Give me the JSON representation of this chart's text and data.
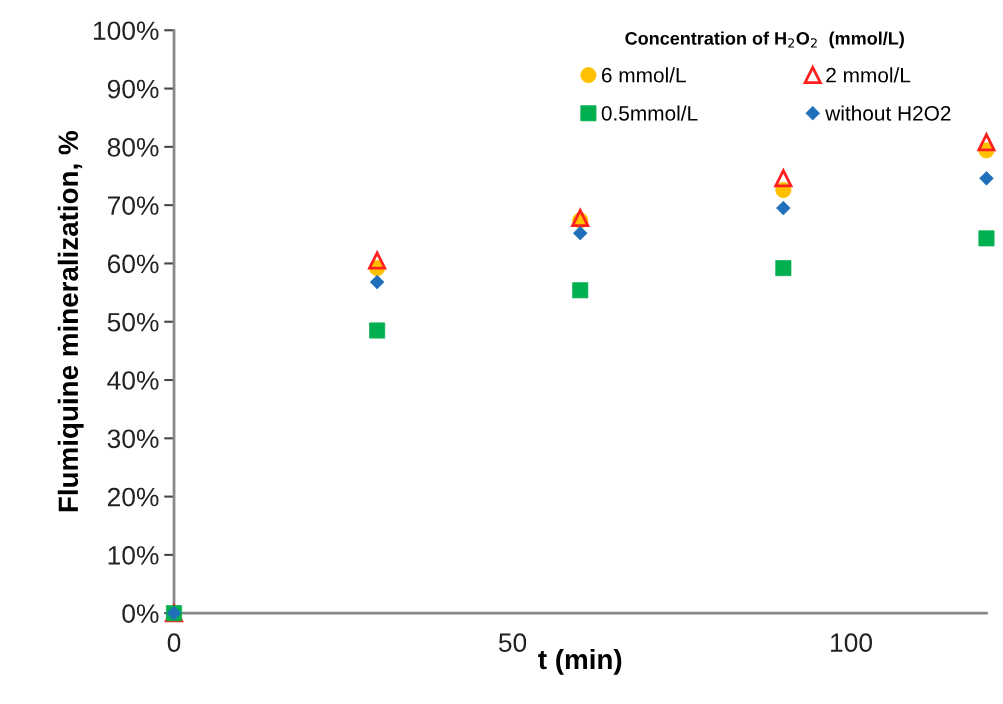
{
  "chart_data": {
    "type": "scatter",
    "xlabel": "t (min)",
    "ylabel": "Flumiquine mineralization, %",
    "legend_title": "Concentration of H$_{2}$O$_{2}$  (mmol/L)",
    "x": [
      0,
      30,
      60,
      90,
      120
    ],
    "series": [
      {
        "name": "6 mmol/L",
        "color": "#ffc000",
        "marker": "circle",
        "values": [
          null,
          59.2,
          67.4,
          72.6,
          79.4
        ]
      },
      {
        "name": "2 mmol/L",
        "color": "#ff2020",
        "marker": "triangle-open",
        "values": [
          0,
          60.5,
          67.8,
          74.6,
          80.8
        ]
      },
      {
        "name": "0.5mmol/L",
        "color": "#00b050",
        "marker": "square",
        "values": [
          0,
          48.5,
          55.4,
          59.2,
          64.3
        ]
      },
      {
        "name": "without H2O2",
        "color": "#1f6fba",
        "marker": "diamond",
        "values": [
          0,
          56.8,
          65.2,
          69.5,
          74.6
        ]
      }
    ],
    "xlim": [
      0,
      120
    ],
    "xticks": [
      0,
      50,
      100
    ],
    "ylim": [
      0,
      100
    ],
    "yticks": [
      {
        "value": 0,
        "label": "0%"
      },
      {
        "value": 10,
        "label": "10%"
      },
      {
        "value": 20,
        "label": "20%"
      },
      {
        "value": 30,
        "label": "30%"
      },
      {
        "value": 40,
        "label": "40%"
      },
      {
        "value": 50,
        "label": "50%"
      },
      {
        "value": 60,
        "label": "60%"
      },
      {
        "value": 70,
        "label": "70%"
      },
      {
        "value": 80,
        "label": "80%"
      },
      {
        "value": 90,
        "label": "90%"
      },
      {
        "value": 100,
        "label": "100%"
      }
    ],
    "grid": false,
    "legend": "top right"
  }
}
